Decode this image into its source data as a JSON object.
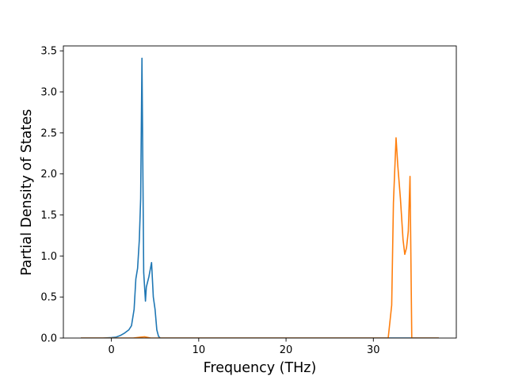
{
  "chart_data": {
    "type": "line",
    "xlabel": "Frequency (THz)",
    "ylabel": "Partial Density of States",
    "xlim": [
      -5.5,
      39.5
    ],
    "ylim": [
      0,
      3.56
    ],
    "xticks": [
      0,
      10,
      20,
      30
    ],
    "yticks": [
      0.0,
      0.5,
      1.0,
      1.5,
      2.0,
      2.5,
      3.0,
      3.5
    ],
    "xtick_labels": [
      "0",
      "10",
      "20",
      "30"
    ],
    "ytick_labels": [
      "0.0",
      "0.5",
      "1.0",
      "1.5",
      "2.0",
      "2.5",
      "3.0",
      "3.5"
    ],
    "grid": false,
    "legend": "none",
    "series": [
      {
        "color": "#1f77b4",
        "x": [
          -3.5,
          -1.0,
          0.0,
          0.5,
          1.0,
          1.5,
          2.0,
          2.3,
          2.6,
          2.8,
          3.0,
          3.2,
          3.35,
          3.5,
          3.7,
          3.9,
          4.0,
          4.3,
          4.6,
          4.8,
          5.0,
          5.2,
          5.4,
          5.6,
          7.0,
          37.5
        ],
        "y": [
          0.0,
          0.0,
          0.005,
          0.01,
          0.03,
          0.06,
          0.1,
          0.15,
          0.35,
          0.72,
          0.85,
          1.2,
          1.7,
          3.41,
          0.8,
          0.45,
          0.62,
          0.75,
          0.92,
          0.5,
          0.35,
          0.1,
          0.02,
          0.0,
          0.0,
          0.0
        ]
      },
      {
        "color": "#ff7f0e",
        "x": [
          -3.5,
          2.5,
          3.3,
          3.8,
          4.5,
          30.0,
          31.7,
          32.1,
          32.3,
          32.6,
          32.8,
          33.1,
          33.4,
          33.6,
          33.8,
          34.0,
          34.2,
          34.4,
          37.5
        ],
        "y": [
          0.0,
          0.0,
          0.01,
          0.015,
          0.0,
          0.0,
          0.0,
          0.4,
          1.65,
          2.44,
          2.1,
          1.7,
          1.2,
          1.02,
          1.1,
          1.3,
          1.97,
          0.0,
          0.0
        ]
      }
    ]
  }
}
